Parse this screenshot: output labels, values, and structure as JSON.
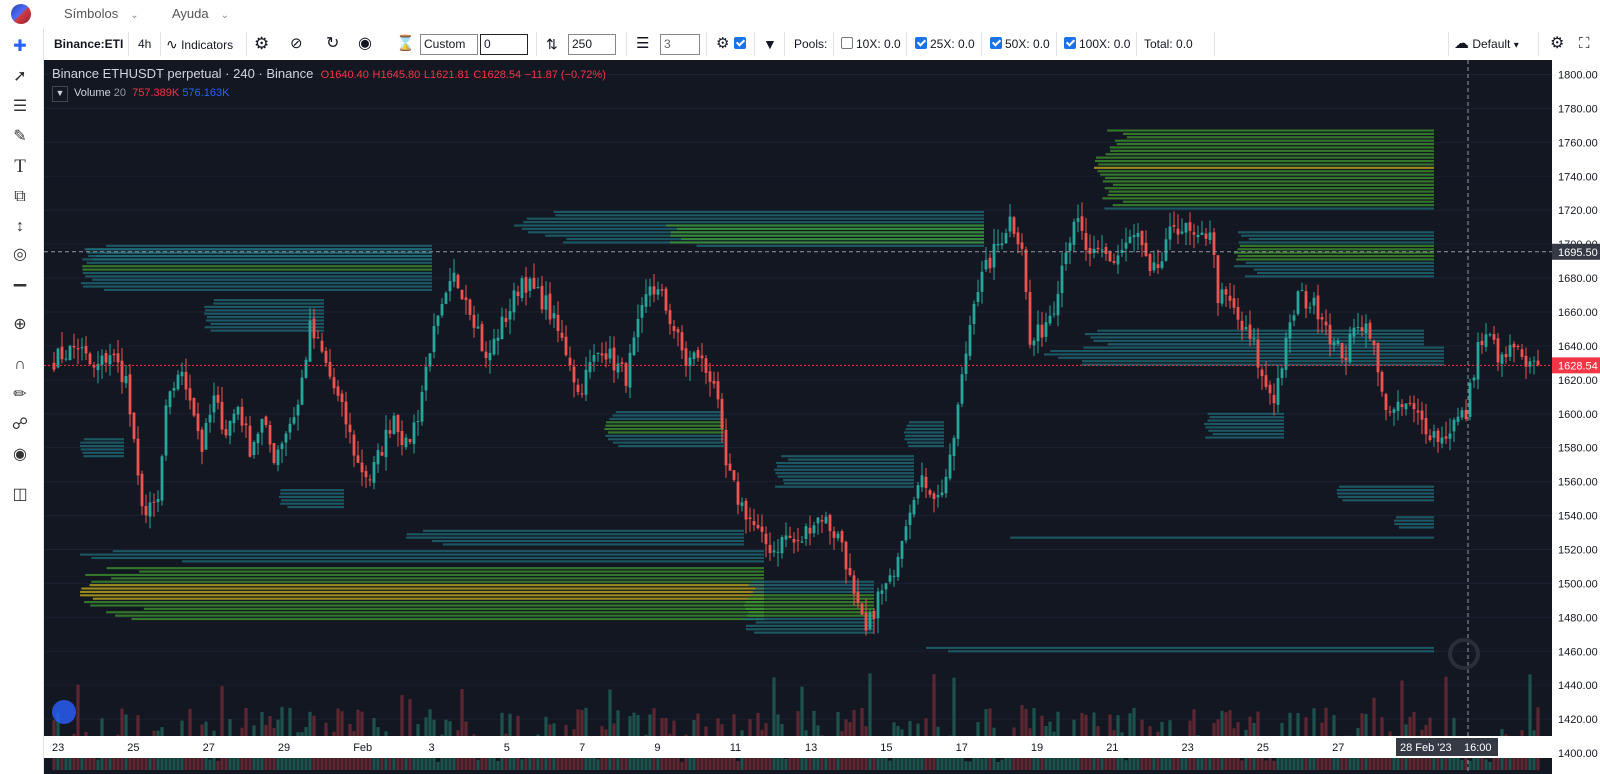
{
  "menubar": {
    "items": [
      "Símbolos",
      "Ayuda"
    ]
  },
  "toolbar": {
    "symbol": "Binance:ETI",
    "interval": "4h",
    "indicators": "Indicators",
    "custom_select": "Custom",
    "custom_value": "0",
    "depth_value": "250",
    "levels_value": "3",
    "pools_label": "Pools:",
    "pool_10x": "10X: 0.0",
    "pool_25x": "25X: 0.0",
    "pool_50x": "50X: 0.0",
    "pool_100x": "100X: 0.0",
    "total": "Total: 0.0",
    "layout": "Default"
  },
  "legend": {
    "title": "Binance ETHUSDT perpetual · 240 · Binance",
    "open": "O1640.40",
    "high": "H1645.80",
    "low": "L1621.81",
    "close": "C1628.54",
    "change": "−11.87 (−0.72%)",
    "volume_label": "Volume",
    "volume_len": "20",
    "volume_1": "757.389K",
    "volume_2": "576.163K"
  },
  "colors": {
    "up": "#26a69a",
    "down": "#ef5350",
    "background": "#131722",
    "heat_low": "#1f6f7a",
    "heat_mid": "#3f9a2e",
    "heat_high": "#c8b21a"
  },
  "chart_data": {
    "type": "candlestick",
    "symbol": "ETHUSDT perpetual",
    "exchange": "Binance",
    "timeframe": "240",
    "ylim": [
      1390,
      1805
    ],
    "y_ticks": [
      1400,
      1420,
      1440,
      1460,
      1480,
      1500,
      1520,
      1540,
      1560,
      1580,
      1600,
      1620,
      1640,
      1660,
      1680,
      1700,
      1720,
      1740,
      1760,
      1780,
      1800
    ],
    "y_tick_labels": [
      "1400.00",
      "1420.00",
      "1440.00",
      "1460.00",
      "1480.00",
      "1500.00",
      "1520.00",
      "1540.00",
      "1560.00",
      "1580.00",
      "1600.00",
      "1620.00",
      "1640.00",
      "1660.00",
      "1680.00",
      "1700.00",
      "1720.00",
      "1740.00",
      "1760.00",
      "1780.00",
      "1800.00"
    ],
    "x_labels": [
      "23",
      "25",
      "27",
      "29",
      "Feb",
      "3",
      "5",
      "7",
      "9",
      "11",
      "13",
      "15",
      "17",
      "19",
      "21",
      "23",
      "25",
      "27"
    ],
    "crosshair_x_label": "28 Feb '23",
    "crosshair_time_label": "16:00",
    "crosshair_price": 1695.5,
    "crosshair_price_label": "1695.50",
    "last_price": 1628.54,
    "last_price_label": "1628.54",
    "close_path": [
      [
        0,
        1632
      ],
      [
        6,
        1640
      ],
      [
        10,
        1625
      ],
      [
        14,
        1636
      ],
      [
        18,
        1620
      ],
      [
        21,
        1560
      ],
      [
        23,
        1540
      ],
      [
        26,
        1548
      ],
      [
        28,
        1600
      ],
      [
        31,
        1625
      ],
      [
        34,
        1612
      ],
      [
        37,
        1580
      ],
      [
        40,
        1608
      ],
      [
        43,
        1590
      ],
      [
        46,
        1605
      ],
      [
        49,
        1580
      ],
      [
        52,
        1595
      ],
      [
        55,
        1575
      ],
      [
        58,
        1590
      ],
      [
        61,
        1605
      ],
      [
        64,
        1650
      ],
      [
        67,
        1635
      ],
      [
        70,
        1615
      ],
      [
        73,
        1595
      ],
      [
        76,
        1570
      ],
      [
        79,
        1562
      ],
      [
        82,
        1580
      ],
      [
        85,
        1600
      ],
      [
        88,
        1580
      ],
      [
        91,
        1600
      ],
      [
        94,
        1640
      ],
      [
        97,
        1660
      ],
      [
        100,
        1680
      ],
      [
        103,
        1670
      ],
      [
        106,
        1650
      ],
      [
        108,
        1630
      ],
      [
        111,
        1648
      ],
      [
        114,
        1662
      ],
      [
        117,
        1680
      ],
      [
        120,
        1672
      ],
      [
        123,
        1665
      ],
      [
        126,
        1648
      ],
      [
        129,
        1632
      ],
      [
        131,
        1612
      ],
      [
        134,
        1628
      ],
      [
        137,
        1640
      ],
      [
        140,
        1630
      ],
      [
        143,
        1622
      ],
      [
        146,
        1650
      ],
      [
        149,
        1676
      ],
      [
        152,
        1668
      ],
      [
        155,
        1650
      ],
      [
        158,
        1630
      ],
      [
        161,
        1635
      ],
      [
        163,
        1625
      ],
      [
        165,
        1620
      ],
      [
        168,
        1568
      ],
      [
        171,
        1550
      ],
      [
        174,
        1538
      ],
      [
        177,
        1525
      ],
      [
        180,
        1520
      ],
      [
        183,
        1528
      ],
      [
        186,
        1522
      ],
      [
        189,
        1535
      ],
      [
        192,
        1540
      ],
      [
        195,
        1530
      ],
      [
        197,
        1525
      ],
      [
        200,
        1490
      ],
      [
        203,
        1470
      ],
      [
        206,
        1492
      ],
      [
        209,
        1500
      ],
      [
        212,
        1530
      ],
      [
        215,
        1555
      ],
      [
        218,
        1560
      ],
      [
        221,
        1550
      ],
      [
        224,
        1570
      ],
      [
        227,
        1620
      ],
      [
        230,
        1670
      ],
      [
        233,
        1685
      ],
      [
        236,
        1700
      ],
      [
        239,
        1715
      ],
      [
        242,
        1700
      ],
      [
        244,
        1640
      ],
      [
        247,
        1650
      ],
      [
        250,
        1665
      ],
      [
        253,
        1700
      ],
      [
        256,
        1712
      ],
      [
        259,
        1690
      ],
      [
        262,
        1695
      ],
      [
        265,
        1690
      ],
      [
        268,
        1700
      ],
      [
        271,
        1705
      ],
      [
        274,
        1680
      ],
      [
        277,
        1690
      ],
      [
        280,
        1712
      ],
      [
        283,
        1708
      ],
      [
        286,
        1700
      ],
      [
        289,
        1710
      ],
      [
        291,
        1670
      ],
      [
        294,
        1665
      ],
      [
        297,
        1650
      ],
      [
        300,
        1640
      ],
      [
        302,
        1620
      ],
      [
        305,
        1610
      ],
      [
        308,
        1640
      ],
      [
        311,
        1670
      ],
      [
        314,
        1665
      ],
      [
        317,
        1660
      ],
      [
        320,
        1640
      ],
      [
        323,
        1635
      ],
      [
        326,
        1655
      ],
      [
        329,
        1650
      ],
      [
        332,
        1610
      ],
      [
        335,
        1600
      ],
      [
        338,
        1605
      ],
      [
        341,
        1598
      ],
      [
        344,
        1590
      ],
      [
        347,
        1585
      ],
      [
        350,
        1595
      ],
      [
        353,
        1600
      ],
      [
        356,
        1640
      ],
      [
        359,
        1645
      ],
      [
        362,
        1630
      ],
      [
        365,
        1640
      ],
      [
        368,
        1625
      ],
      [
        371,
        1628
      ]
    ]
  }
}
